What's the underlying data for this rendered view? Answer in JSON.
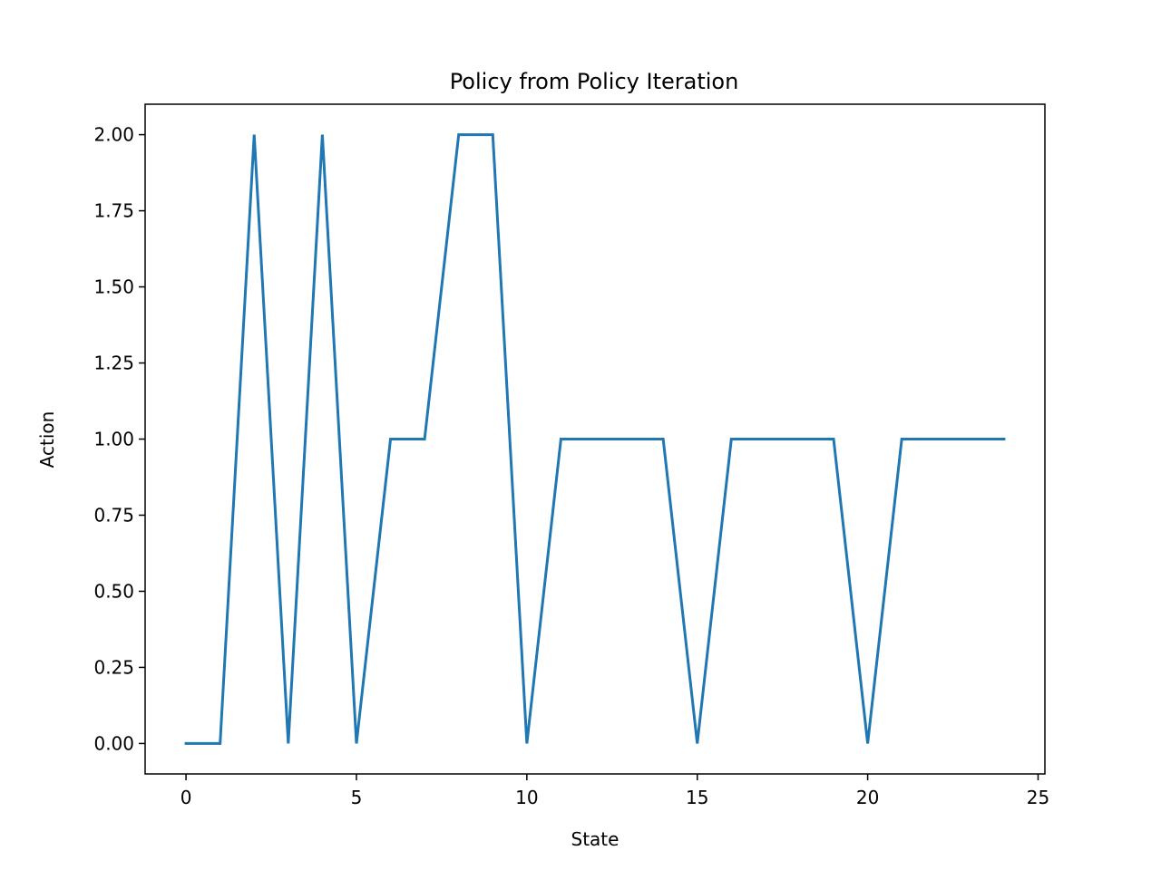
{
  "chart_data": {
    "type": "line",
    "title": "Policy from Policy Iteration",
    "xlabel": "State",
    "ylabel": "Action",
    "xlim": [
      -1.2,
      25.2
    ],
    "ylim": [
      -0.1,
      2.1
    ],
    "x_ticks": [
      0,
      5,
      10,
      15,
      20,
      25
    ],
    "x_tick_labels": [
      "0",
      "5",
      "10",
      "15",
      "20",
      "25"
    ],
    "y_ticks": [
      0,
      0.25,
      0.5,
      0.75,
      1.0,
      1.25,
      1.5,
      1.75,
      2.0
    ],
    "y_tick_labels": [
      "0.00",
      "0.25",
      "0.50",
      "0.75",
      "1.00",
      "1.25",
      "1.50",
      "1.75",
      "2.00"
    ],
    "grid": false,
    "legend": "none",
    "series": [
      {
        "color": "#1f77b4",
        "x": [
          0,
          1,
          2,
          3,
          4,
          5,
          6,
          7,
          8,
          9,
          10,
          11,
          12,
          13,
          14,
          15,
          16,
          17,
          18,
          19,
          20,
          21,
          22,
          23,
          24
        ],
        "values": [
          0,
          0,
          2,
          0,
          2,
          0,
          1,
          1,
          2,
          2,
          0,
          1,
          1,
          1,
          1,
          0,
          1,
          1,
          1,
          1,
          0,
          1,
          1,
          1,
          1
        ]
      }
    ]
  }
}
